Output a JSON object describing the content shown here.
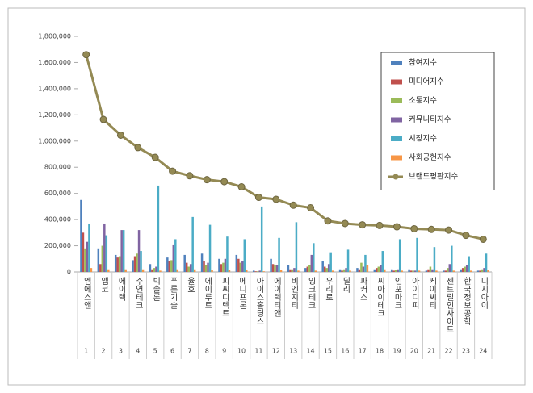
{
  "chart_data": {
    "type": "bar_line",
    "categories": [
      "엠에스앤",
      "앱코",
      "에이텍",
      "주연테크",
      "빅솔론",
      "푸른기술",
      "율호",
      "에이루트",
      "피씨디렉트",
      "메디프론",
      "아이스홀딩스",
      "에이텍티앤",
      "비엔지티",
      "잉크테크",
      "우리로",
      "딜리",
      "파커스",
      "씨아이테크",
      "인포마크",
      "아이디피",
      "케이씨티",
      "센트럴인사이트",
      "한국정보공학",
      "디지아이"
    ],
    "category_numbers": [
      1,
      2,
      3,
      4,
      5,
      6,
      7,
      8,
      9,
      10,
      11,
      12,
      13,
      14,
      15,
      16,
      17,
      18,
      19,
      20,
      21,
      22,
      23,
      24
    ],
    "ylim": [
      0,
      1800000
    ],
    "yticks": [
      0,
      {
        "value": 200000,
        "label": "200,000"
      },
      {
        "value": 400000,
        "label": "400,000"
      },
      {
        "value": 600000,
        "label": "600,000"
      },
      {
        "value": 800000,
        "label": "800,000"
      },
      {
        "value": 1000000,
        "label": "1,000,000"
      },
      {
        "value": 1200000,
        "label": "1,200,000"
      },
      {
        "value": 1400000,
        "label": "1,400,000"
      },
      {
        "value": 1600000,
        "label": "1,600,000"
      },
      {
        "value": 1800000,
        "label": "1,800,000"
      }
    ],
    "legend": "upper right",
    "series": [
      {
        "name": "참여지수",
        "color": "#4f81bd",
        "kind": "bar",
        "values": [
          550000,
          180000,
          130000,
          90000,
          60000,
          110000,
          130000,
          140000,
          100000,
          130000,
          10000,
          100000,
          50000,
          30000,
          80000,
          20000,
          30000,
          20000,
          20000,
          20000,
          10000,
          10000,
          20000,
          10000
        ]
      },
      {
        "name": "미디어지수",
        "color": "#c0504d",
        "kind": "bar",
        "values": [
          300000,
          60000,
          110000,
          120000,
          20000,
          80000,
          70000,
          80000,
          60000,
          100000,
          5000,
          60000,
          20000,
          40000,
          40000,
          10000,
          20000,
          30000,
          10000,
          10000,
          20000,
          10000,
          30000,
          10000
        ]
      },
      {
        "name": "소통지수",
        "color": "#9bbb59",
        "kind": "bar",
        "values": [
          180000,
          200000,
          120000,
          140000,
          30000,
          90000,
          40000,
          50000,
          70000,
          70000,
          5000,
          50000,
          20000,
          50000,
          30000,
          20000,
          70000,
          40000,
          15000,
          10000,
          40000,
          30000,
          40000,
          20000
        ]
      },
      {
        "name": "커뮤니티지수",
        "color": "#8064a2",
        "kind": "bar",
        "values": [
          230000,
          370000,
          320000,
          320000,
          40000,
          210000,
          60000,
          70000,
          100000,
          80000,
          10000,
          50000,
          30000,
          130000,
          60000,
          30000,
          40000,
          50000,
          20000,
          10000,
          20000,
          60000,
          50000,
          30000
        ]
      },
      {
        "name": "시장지수",
        "color": "#4bacc6",
        "kind": "bar",
        "values": [
          370000,
          280000,
          320000,
          160000,
          660000,
          250000,
          420000,
          360000,
          270000,
          250000,
          500000,
          260000,
          380000,
          220000,
          150000,
          170000,
          130000,
          160000,
          250000,
          260000,
          190000,
          200000,
          120000,
          140000
        ]
      },
      {
        "name": "사회공헌지수",
        "color": "#f79646",
        "kind": "bar",
        "values": [
          30000,
          20000,
          20000,
          20000,
          10000,
          20000,
          20000,
          15000,
          15000,
          15000,
          5000,
          15000,
          10000,
          10000,
          10000,
          10000,
          50000,
          20000,
          10000,
          10000,
          10000,
          10000,
          10000,
          15000
        ]
      },
      {
        "name": "브랜드평판지수",
        "color": "#948a54",
        "kind": "line",
        "values": [
          1660000,
          1165000,
          1045000,
          950000,
          875000,
          770000,
          735000,
          705000,
          690000,
          650000,
          570000,
          555000,
          510000,
          490000,
          390000,
          370000,
          360000,
          355000,
          345000,
          330000,
          325000,
          320000,
          280000,
          250000
        ]
      }
    ]
  }
}
